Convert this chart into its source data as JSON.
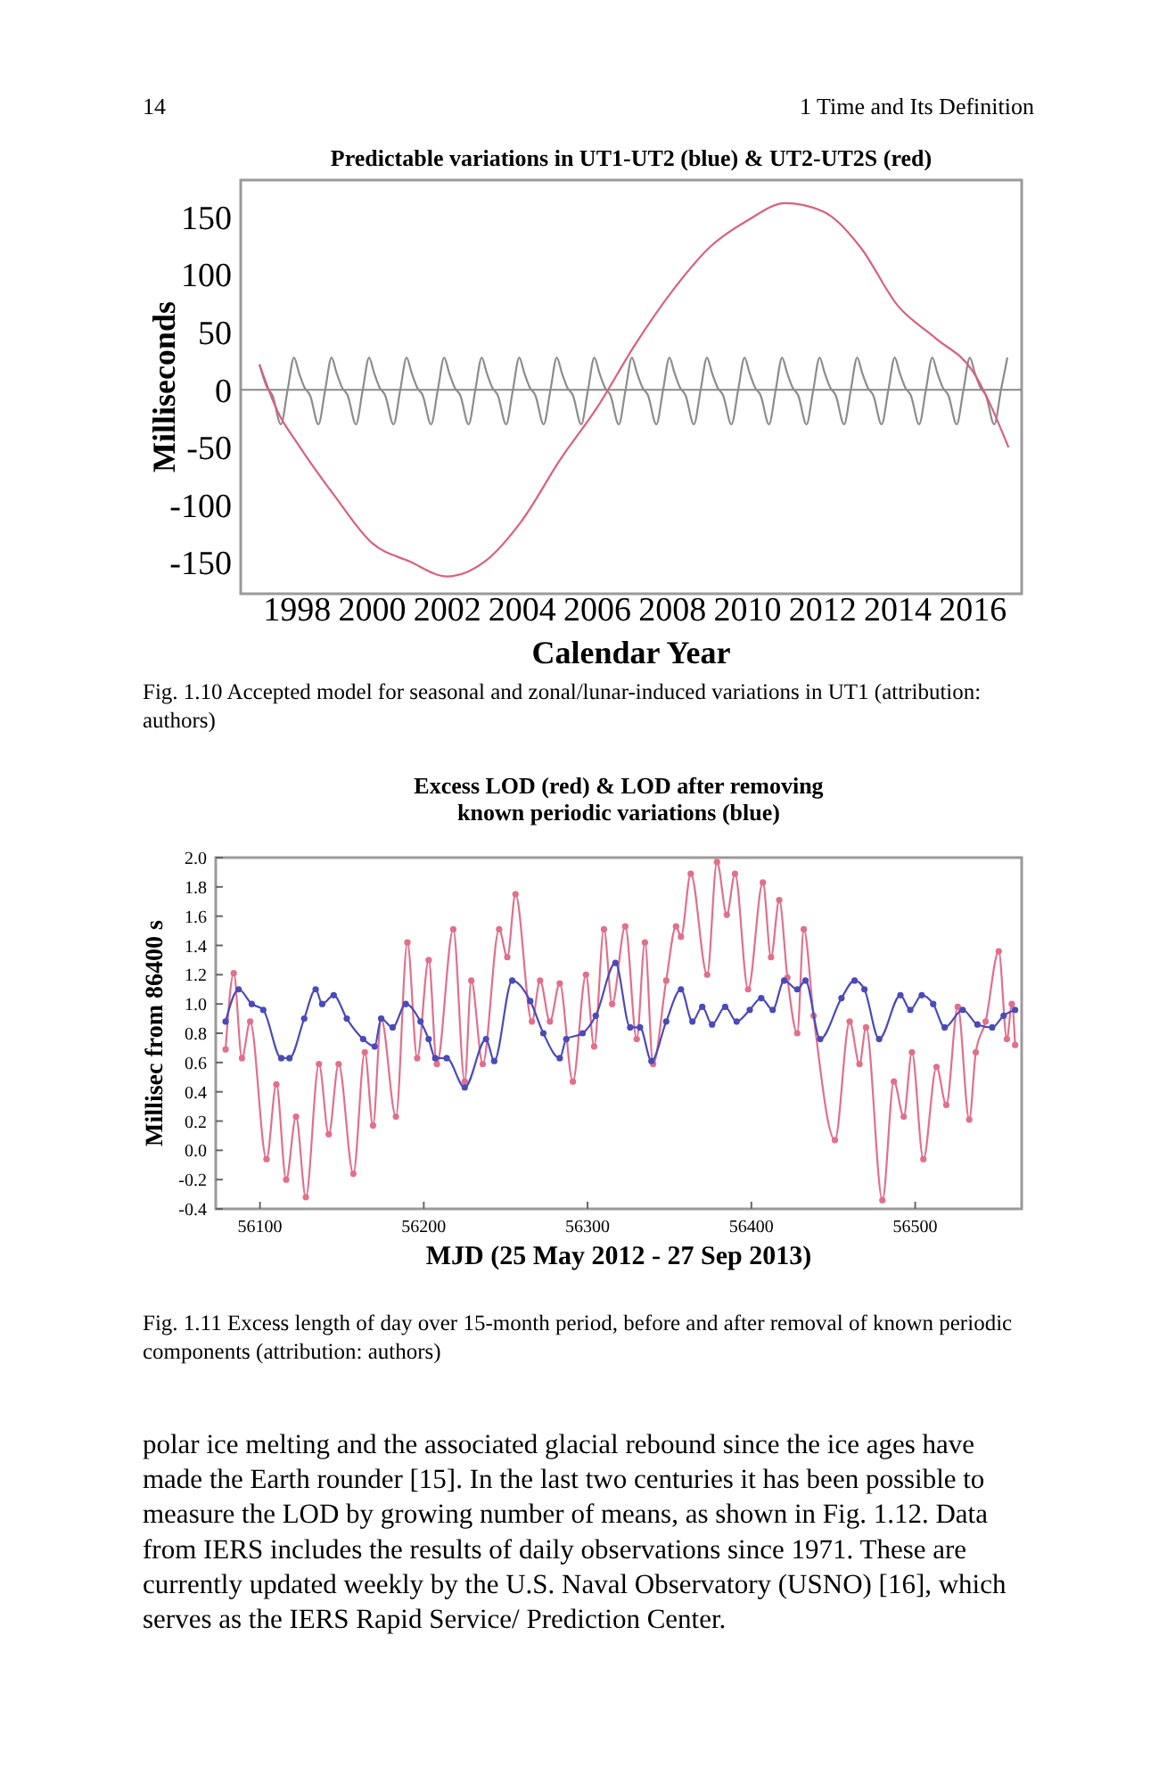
{
  "chart_data": [
    {
      "type": "line",
      "title": "Predictable variations in UT1-UT2 (blue) & UT2-UT2S (red)",
      "xlabel": "Calendar Year",
      "ylabel": "Milliseconds",
      "xlim": [
        1996.5,
        2017.3
      ],
      "ylim": [
        -177,
        182
      ],
      "xticks": [
        1998,
        2000,
        2002,
        2004,
        2006,
        2008,
        2010,
        2012,
        2014,
        2016
      ],
      "yticks": [
        -150,
        -100,
        -50,
        0,
        50,
        100,
        150
      ],
      "ref_lines": [
        {
          "axis": "y",
          "value": 0,
          "color": "#888888"
        }
      ],
      "series": [
        {
          "color": "#8c8c8c",
          "x": [
            1997.0,
            1997.2,
            1997.35,
            1997.57,
            1997.75,
            1997.92,
            1998.05,
            1998.2,
            1998.35,
            1998.57,
            1998.75,
            1998.92,
            1999.05,
            1999.2,
            1999.35,
            1999.57,
            1999.75,
            1999.92,
            2000.05,
            2000.2,
            2000.35,
            2000.57,
            2000.75,
            2000.92,
            2001.05,
            2001.2,
            2001.35,
            2001.57,
            2001.75,
            2001.92,
            2002.05,
            2002.2,
            2002.35,
            2002.57,
            2002.75,
            2002.92,
            2003.05,
            2003.2,
            2003.35,
            2003.57,
            2003.75,
            2003.92,
            2004.05,
            2004.2,
            2004.35,
            2004.57,
            2004.75,
            2004.92,
            2005.05,
            2005.2,
            2005.35,
            2005.57,
            2005.75,
            2005.92,
            2006.05,
            2006.2,
            2006.35,
            2006.57,
            2006.75,
            2006.92,
            2007.05,
            2007.2,
            2007.35,
            2007.57,
            2007.75,
            2007.92,
            2008.05,
            2008.2,
            2008.35,
            2008.57,
            2008.75,
            2008.92,
            2009.05,
            2009.2,
            2009.35,
            2009.57,
            2009.75,
            2009.92,
            2010.05,
            2010.2,
            2010.35,
            2010.57,
            2010.75,
            2010.92,
            2011.05,
            2011.2,
            2011.35,
            2011.57,
            2011.75,
            2011.92,
            2012.05,
            2012.2,
            2012.35,
            2012.57,
            2012.75,
            2012.92,
            2013.05,
            2013.2,
            2013.35,
            2013.57,
            2013.75,
            2013.92,
            2014.05,
            2014.2,
            2014.35,
            2014.57,
            2014.75,
            2014.92,
            2015.05,
            2015.2,
            2015.35,
            2015.57,
            2015.75,
            2015.92,
            2016.05,
            2016.2,
            2016.35,
            2016.57,
            2016.75,
            2016.92
          ],
          "values": [
            22,
            2,
            -5,
            -30,
            0,
            28,
            15,
            2,
            -5,
            -30,
            0,
            28,
            15,
            2,
            -5,
            -30,
            0,
            28,
            15,
            2,
            -5,
            -30,
            0,
            28,
            15,
            2,
            -5,
            -30,
            0,
            28,
            15,
            2,
            -5,
            -30,
            0,
            28,
            15,
            2,
            -5,
            -30,
            0,
            28,
            15,
            2,
            -5,
            -30,
            0,
            28,
            15,
            2,
            -5,
            -30,
            0,
            28,
            15,
            2,
            -5,
            -30,
            0,
            28,
            15,
            2,
            -5,
            -30,
            0,
            28,
            15,
            2,
            -5,
            -30,
            0,
            28,
            15,
            2,
            -5,
            -30,
            0,
            28,
            15,
            2,
            -5,
            -30,
            0,
            28,
            15,
            2,
            -5,
            -30,
            0,
            28,
            15,
            2,
            -5,
            -30,
            0,
            28,
            15,
            2,
            -5,
            -30,
            0,
            28,
            15,
            2,
            -5,
            -30,
            0,
            28,
            15,
            2,
            -5,
            -30,
            0,
            28,
            15,
            2,
            -5,
            -30,
            0,
            28
          ]
        },
        {
          "color": "#d9607e",
          "x": [
            1997.0,
            1997.5,
            1998,
            1999,
            2000,
            2001,
            2002,
            2003,
            2004,
            2005,
            2006,
            2007,
            2008,
            2009,
            2010,
            2011,
            2012,
            2013,
            2014,
            2015,
            2016,
            2016.95
          ],
          "values": [
            22,
            -20,
            -46,
            -92,
            -133,
            -149,
            -162,
            -149,
            -113,
            -61,
            -15,
            39,
            86,
            124,
            147,
            162,
            155,
            124,
            73,
            45,
            16,
            -50
          ]
        }
      ],
      "annotations": [
        "14",
        "1   Time and Its Definition",
        "Fig. 1.10  Accepted model for seasonal and zonal/lunar-induced variations in UT1 (attribution: authors)"
      ]
    },
    {
      "type": "line",
      "title": "Excess LOD (red) & LOD after removing known periodic variations (blue)",
      "xlabel": "MJD (25 May 2012 - 27 Sep 2013)",
      "ylabel": "Millisec from 86400 s",
      "marker": "circle",
      "xlim": [
        56073,
        56565
      ],
      "ylim": [
        -0.4,
        2.0
      ],
      "xticks": [
        56100,
        56200,
        56300,
        56400,
        56500
      ],
      "yticks": [
        -0.4,
        -0.2,
        {
          "value": 0,
          "label": "0.0"
        },
        0.2,
        0.4,
        0.6,
        0.8,
        {
          "value": 1,
          "label": "1.0"
        },
        1.2,
        1.4,
        1.6,
        1.8,
        {
          "value": 2,
          "label": "2.0"
        }
      ],
      "series": [
        {
          "color": "#e0708c",
          "x": [
            56079,
            56084,
            56089,
            56094,
            56104,
            56110,
            56116,
            56122,
            56128,
            56136,
            56142,
            56148,
            56157,
            56164,
            56169,
            56174,
            56183,
            56190,
            56196,
            56203,
            56208,
            56218,
            56225,
            56229,
            56236,
            56246,
            56251,
            56256,
            56266,
            56271,
            56277,
            56283,
            56291,
            56299,
            56304,
            56310,
            56315,
            56323,
            56330,
            56335,
            56340,
            56348,
            56354,
            56357,
            56363,
            56373,
            56379,
            56385,
            56390,
            56398,
            56407,
            56412,
            56417,
            56422,
            56428,
            56432,
            56438,
            56451,
            56460,
            56466,
            56470,
            56480,
            56487,
            56493,
            56498,
            56505,
            56513,
            56519,
            56526,
            56533,
            56537,
            56543,
            56551,
            56556,
            56559,
            56561
          ],
          "values": [
            0.69,
            1.21,
            0.63,
            0.88,
            -0.06,
            0.45,
            -0.2,
            0.23,
            -0.32,
            0.59,
            0.11,
            0.59,
            -0.16,
            0.67,
            0.17,
            0.9,
            0.23,
            1.42,
            0.63,
            1.3,
            0.59,
            1.51,
            0.47,
            1.16,
            0.59,
            1.51,
            1.32,
            1.75,
            0.88,
            1.16,
            0.88,
            1.14,
            0.47,
            1.2,
            0.71,
            1.51,
            1.0,
            1.53,
            0.76,
            1.42,
            0.59,
            1.16,
            1.53,
            1.46,
            1.89,
            1.2,
            1.97,
            1.61,
            1.89,
            1.1,
            1.83,
            1.32,
            1.71,
            1.18,
            0.8,
            1.51,
            0.92,
            0.07,
            0.88,
            0.59,
            0.84,
            -0.34,
            0.47,
            0.23,
            0.67,
            -0.06,
            0.57,
            0.31,
            0.98,
            0.21,
            0.67,
            0.88,
            1.36,
            0.76,
            1.0,
            0.72
          ]
        },
        {
          "color": "#4a4ab8",
          "x": [
            56079,
            56087,
            56095,
            56102,
            56113,
            56118,
            56127,
            56134,
            56138,
            56145,
            56153,
            56163,
            56170,
            56174,
            56181,
            56189,
            56198,
            56203,
            56207,
            56214,
            56225,
            56238,
            56243,
            56254,
            56265,
            56273,
            56283,
            56287,
            56297,
            56305,
            56317,
            56326,
            56332,
            56339,
            56348,
            56357,
            56364,
            56370,
            56376,
            56384,
            56391,
            56399,
            56406,
            56413,
            56420,
            56428,
            56433,
            56442,
            56455,
            56463,
            56469,
            56478,
            56491,
            56497,
            56504,
            56511,
            56518,
            56529,
            56538,
            56547,
            56554,
            56561
          ],
          "values": [
            0.88,
            1.1,
            1.0,
            0.96,
            0.63,
            0.63,
            0.9,
            1.1,
            1.0,
            1.06,
            0.9,
            0.76,
            0.71,
            0.9,
            0.84,
            1.0,
            0.88,
            0.76,
            0.63,
            0.63,
            0.43,
            0.76,
            0.61,
            1.16,
            1.02,
            0.8,
            0.63,
            0.76,
            0.8,
            0.92,
            1.28,
            0.84,
            0.84,
            0.61,
            0.88,
            1.1,
            0.88,
            0.98,
            0.86,
            0.98,
            0.88,
            0.96,
            1.04,
            0.96,
            1.16,
            1.1,
            1.16,
            0.76,
            1.04,
            1.16,
            1.1,
            0.76,
            1.06,
            0.96,
            1.06,
            1.0,
            0.84,
            0.96,
            0.86,
            0.84,
            0.92,
            0.96
          ]
        }
      ],
      "annotations": [
        "Fig. 1.11  Excess length of day over 15-month period, before and after removal of known periodic components (attribution: authors)",
        "polar ice melting and the associated glacial rebound since the ice ages have made the Earth rounder [15]. In the last two centuries it has been possible to measure the LOD by growing number of means, as shown in Fig. 1.12. Data from IERS includes the results of daily observations since 1971. These are currently updated weekly by the U.S. Naval Observatory (USNO) [16], which serves as the IERS Rapid Service/ Prediction Center."
      ]
    }
  ]
}
